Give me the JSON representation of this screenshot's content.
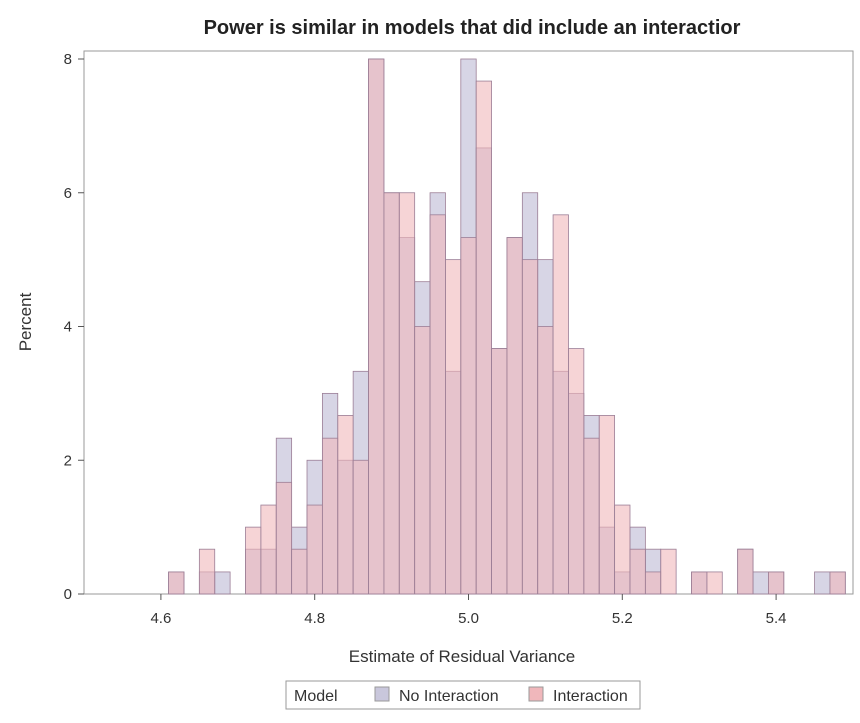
{
  "chart_data": {
    "type": "bar",
    "title": "Power is similar in models that did include an interactior",
    "xlabel": "Estimate of Residual Variance",
    "ylabel": "Percent",
    "xlim": [
      4.5,
      5.5
    ],
    "ylim": [
      0,
      8
    ],
    "x_ticks": [
      "4.6",
      "4.8",
      "5.0",
      "5.2",
      "5.4"
    ],
    "y_ticks": [
      "0",
      "2",
      "4",
      "6",
      "8"
    ],
    "bin_width": 0.02,
    "bin_starts": [
      4.51,
      4.53,
      4.55,
      4.57,
      4.59,
      4.61,
      4.63,
      4.65,
      4.67,
      4.69,
      4.71,
      4.73,
      4.75,
      4.77,
      4.79,
      4.81,
      4.83,
      4.85,
      4.87,
      4.89,
      4.91,
      4.93,
      4.95,
      4.97,
      4.99,
      5.01,
      5.03,
      5.05,
      5.07,
      5.09,
      5.11,
      5.13,
      5.15,
      5.17,
      5.19,
      5.21,
      5.23,
      5.25,
      5.27,
      5.29,
      5.31,
      5.33,
      5.35,
      5.37,
      5.39,
      5.41,
      5.43,
      5.45,
      5.47
    ],
    "legend": {
      "title": "Model",
      "position": "bottom"
    },
    "series": [
      {
        "name": "No Interaction",
        "color": "#c9c7dc",
        "values": [
          0,
          0,
          0,
          0,
          0,
          0.33,
          0,
          0.33,
          0.33,
          0,
          0.67,
          0.67,
          2.33,
          1.0,
          2.0,
          3.0,
          2.0,
          3.33,
          8.0,
          6.0,
          5.33,
          4.67,
          6.0,
          3.33,
          8.0,
          6.67,
          3.67,
          5.33,
          6.0,
          5.0,
          3.33,
          3.0,
          2.67,
          1.0,
          0.33,
          1.0,
          0.67,
          0,
          0,
          0.33,
          0,
          0,
          0.67,
          0.33,
          0.33,
          0,
          0,
          0.33,
          0.33
        ]
      },
      {
        "name": "Interaction",
        "color": "#f0b7bb",
        "values": [
          0,
          0,
          0,
          0,
          0,
          0.33,
          0,
          0.67,
          0,
          0,
          1.0,
          1.33,
          1.67,
          0.67,
          1.33,
          2.33,
          2.67,
          2.0,
          8.0,
          6.0,
          6.0,
          4.0,
          5.67,
          5.0,
          5.33,
          7.67,
          3.67,
          5.33,
          5.0,
          4.0,
          5.67,
          3.67,
          2.33,
          2.67,
          1.33,
          0.67,
          0.33,
          0.67,
          0,
          0.33,
          0.33,
          0,
          0.67,
          0,
          0.33,
          0,
          0,
          0,
          0.33
        ]
      }
    ]
  }
}
